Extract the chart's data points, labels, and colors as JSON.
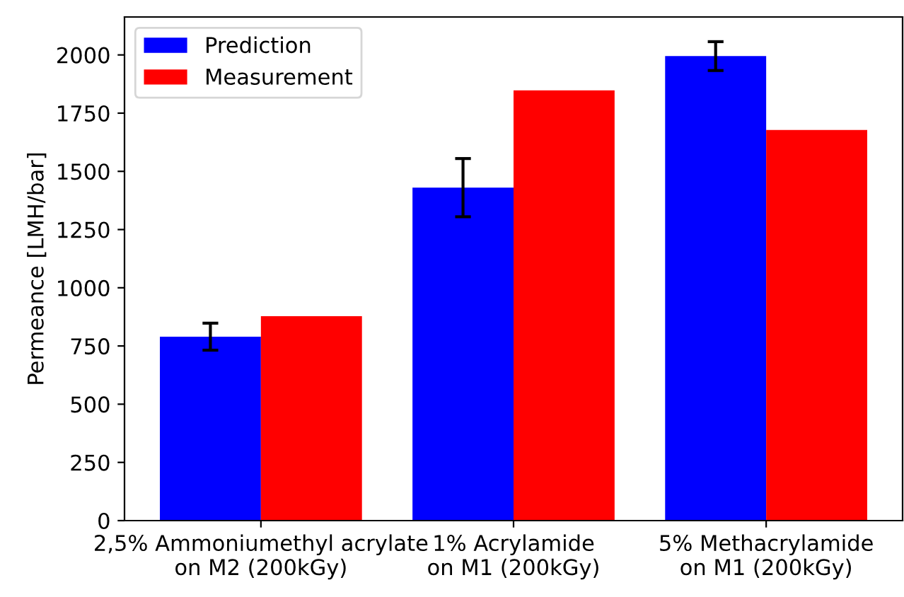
{
  "chart_data": {
    "type": "bar",
    "ylabel": "Permeance [LMH/bar]",
    "categories": [
      "2,5% Ammoniumethyl acrylate\non M2 (200kGy)",
      "1% Acrylamide\non M1 (200kGy)",
      "5% Methacrylamide\non M1 (200kGy)"
    ],
    "series": [
      {
        "name": "Prediction",
        "color": "#0000ff",
        "values": [
          790,
          1430,
          1995
        ],
        "errors": [
          58,
          125,
          62
        ]
      },
      {
        "name": "Measurement",
        "color": "#ff0000",
        "values": [
          878,
          1848,
          1678
        ]
      }
    ],
    "ylim": [
      0,
      2163
    ],
    "yticks": [
      0,
      250,
      500,
      750,
      1000,
      1250,
      1500,
      1750,
      2000
    ],
    "legend": "top left",
    "grid": false
  }
}
